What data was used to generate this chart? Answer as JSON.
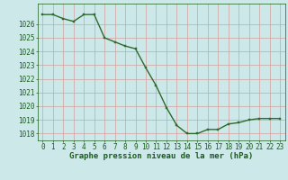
{
  "x": [
    0,
    1,
    2,
    3,
    4,
    5,
    6,
    7,
    8,
    9,
    10,
    11,
    12,
    13,
    14,
    15,
    16,
    17,
    18,
    19,
    20,
    21,
    22,
    23
  ],
  "y": [
    1026.7,
    1026.7,
    1026.4,
    1026.2,
    1026.7,
    1026.7,
    1025.0,
    1024.7,
    1024.4,
    1024.2,
    1022.8,
    1021.5,
    1019.9,
    1018.6,
    1018.0,
    1018.0,
    1018.3,
    1018.3,
    1018.7,
    1018.8,
    1019.0,
    1019.1,
    1019.1,
    1019.1
  ],
  "bg_color": "#cce8e8",
  "line_color": "#2d6a2d",
  "marker_color": "#2d6a2d",
  "grid_color": "#d4a0a0",
  "xlabel": "Graphe pression niveau de la mer (hPa)",
  "xlabel_color": "#1a5c1a",
  "tick_color": "#1a5c1a",
  "ylim": [
    1017.5,
    1027.5
  ],
  "yticks": [
    1018,
    1019,
    1020,
    1021,
    1022,
    1023,
    1024,
    1025,
    1026
  ],
  "xticks": [
    0,
    1,
    2,
    3,
    4,
    5,
    6,
    7,
    8,
    9,
    10,
    11,
    12,
    13,
    14,
    15,
    16,
    17,
    18,
    19,
    20,
    21,
    22,
    23
  ],
  "xlabel_fontsize": 6.5,
  "tick_fontsize": 5.5,
  "line_width": 1.0,
  "marker_size": 2.0
}
